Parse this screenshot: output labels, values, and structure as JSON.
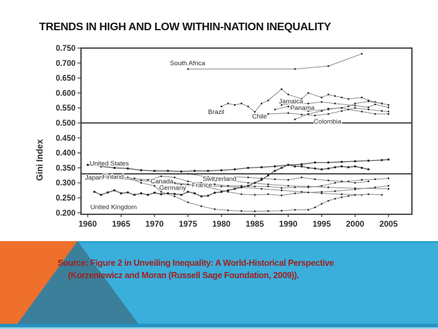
{
  "slide": {
    "title": "TRENDS IN HIGH AND LOW WITHIN-NATION INEQUALITY",
    "source_line1": "Source: Figure 2 in Unveiling Inequality: A World-Historical Perspective",
    "source_line2": "(Korzeniewicz and Moran (Russell Sage Foundation, 2009)).",
    "colors": {
      "title_text": "#151515",
      "source_text": "#9e2121",
      "band_cyan": "#3aafdc",
      "band_cyan_top_edge": "#2ea3cf",
      "band_orange": "#ee702a",
      "band_teal": "#3b7f9a",
      "band_bottom_strip": "#2392c0",
      "band_bottom_edge": "#9dd3ea",
      "chart_axis": "#3a3a3a",
      "chart_line": "#8b8b8b",
      "chart_line_emphasis": "#5a5a5a",
      "chart_marker": "#1e1e1e",
      "chart_text": "#2e2e2e"
    }
  },
  "chart_data": {
    "type": "line",
    "title": "",
    "xlabel": "",
    "ylabel": "Gini Index",
    "grid": false,
    "legend": "none (direct country labels on lines)",
    "xlim": [
      1959,
      2008.5
    ],
    "ylim": [
      0.195,
      0.75
    ],
    "x_ticks": [
      1960,
      1965,
      1970,
      1975,
      1980,
      1985,
      1990,
      1995,
      2000,
      2005
    ],
    "y_ticks": [
      "0.750",
      "0.700",
      "0.650",
      "0.600",
      "0.550",
      "0.500",
      "0.450",
      "0.400",
      "0.350",
      "0.300",
      "0.250",
      "0.200"
    ],
    "y_tick_values": [
      0.75,
      0.7,
      0.65,
      0.6,
      0.55,
      0.5,
      0.45,
      0.4,
      0.35,
      0.3,
      0.25,
      0.2
    ],
    "reference_lines": [
      0.5,
      0.33
    ],
    "series": [
      {
        "name": "South Africa",
        "emphasis": false,
        "label": {
          "x": 1972.3,
          "y": 0.7,
          "anchor": "start"
        },
        "points": [
          [
            1975,
            0.68
          ],
          [
            1991,
            0.68
          ],
          [
            1996,
            0.69
          ],
          [
            2001,
            0.731
          ]
        ]
      },
      {
        "name": "Brazil",
        "emphasis": false,
        "label": {
          "x": 1978.0,
          "y": 0.537,
          "anchor": "start"
        },
        "points": [
          [
            1980,
            0.555
          ],
          [
            1981,
            0.565
          ],
          [
            1982,
            0.56
          ],
          [
            1983,
            0.565
          ],
          [
            1984,
            0.555
          ],
          [
            1985,
            0.537
          ],
          [
            1986,
            0.565
          ],
          [
            1987,
            0.575
          ],
          [
            1989,
            0.613
          ],
          [
            1990,
            0.595
          ],
          [
            1992,
            0.58
          ],
          [
            1993,
            0.6
          ],
          [
            1995,
            0.585
          ],
          [
            1996,
            0.595
          ],
          [
            1997,
            0.59
          ],
          [
            1998,
            0.585
          ],
          [
            1999,
            0.58
          ],
          [
            2001,
            0.585
          ],
          [
            2002,
            0.575
          ],
          [
            2003,
            0.57
          ],
          [
            2004,
            0.565
          ],
          [
            2005,
            0.56
          ]
        ]
      },
      {
        "name": "Jamaica",
        "emphasis": false,
        "label": {
          "x": 1988.6,
          "y": 0.572,
          "anchor": "start"
        },
        "points": [
          [
            1988,
            0.545
          ],
          [
            1990,
            0.555
          ],
          [
            1991,
            0.545
          ],
          [
            1993,
            0.54
          ],
          [
            1996,
            0.545
          ],
          [
            1999,
            0.555
          ],
          [
            2000,
            0.565
          ],
          [
            2002,
            0.572
          ],
          [
            2004,
            0.565
          ]
        ]
      },
      {
        "name": "Panama",
        "emphasis": false,
        "label": {
          "x": 1990.3,
          "y": 0.551,
          "anchor": "start"
        },
        "points": [
          [
            1989,
            0.56
          ],
          [
            1991,
            0.565
          ],
          [
            1993,
            0.565
          ],
          [
            1995,
            0.57
          ],
          [
            1997,
            0.565
          ],
          [
            2000,
            0.558
          ],
          [
            2002,
            0.552
          ],
          [
            2003,
            0.562
          ],
          [
            2005,
            0.552
          ]
        ]
      },
      {
        "name": "Chile",
        "emphasis": false,
        "label": {
          "x": 1984.6,
          "y": 0.522,
          "anchor": "start"
        },
        "points": [
          [
            1987,
            0.53
          ],
          [
            1990,
            0.533
          ],
          [
            1992,
            0.528
          ],
          [
            1994,
            0.525
          ],
          [
            1996,
            0.53
          ],
          [
            1998,
            0.54
          ],
          [
            2000,
            0.55
          ],
          [
            2002,
            0.545
          ],
          [
            2004,
            0.54
          ],
          [
            2005,
            0.538
          ]
        ]
      },
      {
        "name": "Colombia",
        "emphasis": false,
        "label": {
          "x": 1993.8,
          "y": 0.505,
          "anchor": "start"
        },
        "points": [
          [
            1991,
            0.512
          ],
          [
            1993,
            0.53
          ],
          [
            1995,
            0.54
          ],
          [
            1996,
            0.548
          ],
          [
            1998,
            0.55
          ],
          [
            1999,
            0.545
          ],
          [
            2001,
            0.538
          ],
          [
            2003,
            0.53
          ],
          [
            2005,
            0.53
          ]
        ]
      },
      {
        "name": "United States",
        "emphasis": true,
        "label": {
          "x": 1960.3,
          "y": 0.365,
          "anchor": "start"
        },
        "points": [
          [
            1960,
            0.36
          ],
          [
            1962,
            0.355
          ],
          [
            1964,
            0.35
          ],
          [
            1966,
            0.348
          ],
          [
            1968,
            0.342
          ],
          [
            1970,
            0.34
          ],
          [
            1972,
            0.34
          ],
          [
            1974,
            0.338
          ],
          [
            1976,
            0.34
          ],
          [
            1978,
            0.34
          ],
          [
            1980,
            0.342
          ],
          [
            1982,
            0.345
          ],
          [
            1984,
            0.35
          ],
          [
            1986,
            0.352
          ],
          [
            1988,
            0.355
          ],
          [
            1990,
            0.36
          ],
          [
            1992,
            0.362
          ],
          [
            1994,
            0.368
          ],
          [
            1996,
            0.368
          ],
          [
            1998,
            0.37
          ],
          [
            2000,
            0.372
          ],
          [
            2002,
            0.374
          ],
          [
            2004,
            0.376
          ],
          [
            2005,
            0.378
          ]
        ]
      },
      {
        "name": "Japan",
        "emphasis": false,
        "label": {
          "x": 1959.6,
          "y": 0.318,
          "anchor": "start"
        },
        "points": [
          [
            1962,
            0.32
          ],
          [
            1965,
            0.313
          ],
          [
            1968,
            0.308
          ],
          [
            1971,
            0.3
          ],
          [
            1974,
            0.295
          ],
          [
            1977,
            0.29
          ],
          [
            1980,
            0.288
          ],
          [
            1983,
            0.285
          ],
          [
            1986,
            0.28
          ],
          [
            1989,
            0.275
          ],
          [
            1992,
            0.27
          ],
          [
            1995,
            0.265
          ],
          [
            1998,
            0.262
          ],
          [
            2001,
            0.26
          ]
        ]
      },
      {
        "name": "Finland",
        "emphasis": false,
        "label": {
          "x": 1962.2,
          "y": 0.32,
          "anchor": "start"
        },
        "points": [
          [
            1966,
            0.318
          ],
          [
            1968,
            0.3
          ],
          [
            1970,
            0.29
          ],
          [
            1971,
            0.27
          ],
          [
            1973,
            0.255
          ],
          [
            1975,
            0.235
          ],
          [
            1977,
            0.222
          ],
          [
            1979,
            0.212
          ],
          [
            1981,
            0.208
          ],
          [
            1983,
            0.206
          ],
          [
            1985,
            0.205
          ],
          [
            1987,
            0.206
          ],
          [
            1989,
            0.207
          ],
          [
            1991,
            0.21
          ],
          [
            1993,
            0.21
          ],
          [
            1994,
            0.218
          ],
          [
            1995,
            0.23
          ],
          [
            1996,
            0.24
          ],
          [
            1997,
            0.247
          ],
          [
            1998,
            0.252
          ],
          [
            1999,
            0.256
          ],
          [
            2000,
            0.26
          ],
          [
            2002,
            0.262
          ],
          [
            2004,
            0.26
          ]
        ]
      },
      {
        "name": "Canada",
        "emphasis": false,
        "label": {
          "x": 1969.4,
          "y": 0.305,
          "anchor": "start"
        },
        "points": [
          [
            1965,
            0.318
          ],
          [
            1967,
            0.315
          ],
          [
            1969,
            0.31
          ],
          [
            1971,
            0.322
          ],
          [
            1973,
            0.318
          ],
          [
            1975,
            0.305
          ],
          [
            1977,
            0.3
          ],
          [
            1979,
            0.295
          ],
          [
            1981,
            0.29
          ],
          [
            1983,
            0.29
          ],
          [
            1985,
            0.288
          ],
          [
            1987,
            0.288
          ],
          [
            1989,
            0.283
          ],
          [
            1991,
            0.285
          ],
          [
            1993,
            0.285
          ],
          [
            1995,
            0.29
          ],
          [
            1997,
            0.3
          ],
          [
            1999,
            0.305
          ],
          [
            2001,
            0.31
          ],
          [
            2003,
            0.312
          ],
          [
            2005,
            0.315
          ]
        ]
      },
      {
        "name": "Germany",
        "emphasis": false,
        "label": {
          "x": 1970.7,
          "y": 0.283,
          "anchor": "start"
        },
        "points": [
          [
            1973,
            0.3
          ],
          [
            1975,
            0.295
          ],
          [
            1978,
            0.285
          ],
          [
            1981,
            0.27
          ],
          [
            1983,
            0.262
          ],
          [
            1985,
            0.26
          ],
          [
            1987,
            0.262
          ],
          [
            1989,
            0.258
          ],
          [
            1991,
            0.265
          ],
          [
            1993,
            0.268
          ],
          [
            1995,
            0.27
          ],
          [
            1997,
            0.272
          ],
          [
            2000,
            0.278
          ],
          [
            2003,
            0.285
          ],
          [
            2005,
            0.29
          ]
        ]
      },
      {
        "name": "France",
        "emphasis": false,
        "label": {
          "x": 1975.6,
          "y": 0.292,
          "anchor": "start"
        },
        "points": [
          [
            1975,
            0.33
          ],
          [
            1978,
            0.32
          ],
          [
            1981,
            0.31
          ],
          [
            1984,
            0.3
          ],
          [
            1987,
            0.295
          ],
          [
            1990,
            0.29
          ],
          [
            1993,
            0.288
          ],
          [
            1996,
            0.285
          ],
          [
            2000,
            0.282
          ],
          [
            2005,
            0.28
          ]
        ]
      },
      {
        "name": "Switzerland",
        "emphasis": false,
        "label": {
          "x": 1977.2,
          "y": 0.313,
          "anchor": "start"
        },
        "points": [
          [
            1982,
            0.32
          ],
          [
            1984,
            0.318
          ],
          [
            1986,
            0.315
          ],
          [
            1988,
            0.312
          ],
          [
            1990,
            0.31
          ],
          [
            1992,
            0.318
          ],
          [
            1994,
            0.312
          ],
          [
            1996,
            0.308
          ],
          [
            1998,
            0.305
          ],
          [
            2000,
            0.3
          ],
          [
            2002,
            0.305
          ]
        ]
      },
      {
        "name": "United Kingdom",
        "emphasis": true,
        "label": {
          "x": 1960.4,
          "y": 0.219,
          "anchor": "start"
        },
        "points": [
          [
            1961,
            0.27
          ],
          [
            1962,
            0.26
          ],
          [
            1963,
            0.268
          ],
          [
            1964,
            0.275
          ],
          [
            1965,
            0.265
          ],
          [
            1966,
            0.268
          ],
          [
            1967,
            0.26
          ],
          [
            1968,
            0.265
          ],
          [
            1969,
            0.26
          ],
          [
            1970,
            0.267
          ],
          [
            1971,
            0.262
          ],
          [
            1972,
            0.265
          ],
          [
            1973,
            0.263
          ],
          [
            1974,
            0.26
          ],
          [
            1975,
            0.27
          ],
          [
            1976,
            0.265
          ],
          [
            1977,
            0.255
          ],
          [
            1978,
            0.257
          ],
          [
            1979,
            0.267
          ],
          [
            1980,
            0.27
          ],
          [
            1981,
            0.275
          ],
          [
            1982,
            0.28
          ],
          [
            1983,
            0.285
          ],
          [
            1984,
            0.29
          ],
          [
            1985,
            0.3
          ],
          [
            1986,
            0.31
          ],
          [
            1987,
            0.325
          ],
          [
            1988,
            0.34
          ],
          [
            1989,
            0.35
          ],
          [
            1990,
            0.36
          ],
          [
            1991,
            0.355
          ],
          [
            1992,
            0.355
          ],
          [
            1993,
            0.35
          ],
          [
            1994,
            0.348
          ],
          [
            1995,
            0.345
          ],
          [
            1996,
            0.348
          ],
          [
            1997,
            0.352
          ],
          [
            1998,
            0.355
          ],
          [
            1999,
            0.352
          ],
          [
            2000,
            0.355
          ],
          [
            2001,
            0.35
          ],
          [
            2002,
            0.345
          ]
        ]
      }
    ]
  }
}
